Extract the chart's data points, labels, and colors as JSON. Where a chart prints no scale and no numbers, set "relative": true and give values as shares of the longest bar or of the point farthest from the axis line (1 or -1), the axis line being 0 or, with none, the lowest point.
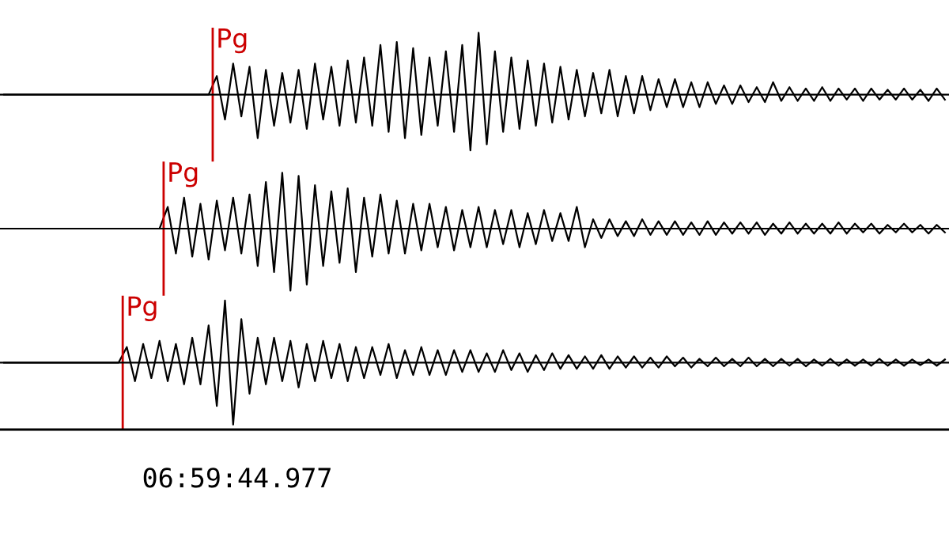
{
  "chart_data": [
    {
      "type": "line",
      "relative": true,
      "tick_labels": false,
      "categories": [
        null,
        null,
        null,
        null,
        null,
        null,
        null,
        null,
        null,
        null,
        null,
        null,
        null,
        null,
        null,
        null,
        null,
        null,
        null,
        null,
        null,
        null,
        null,
        null,
        null,
        null,
        null,
        null,
        null,
        null,
        null,
        null,
        null,
        null,
        null,
        null,
        null,
        null,
        null,
        null,
        null,
        null,
        null,
        null,
        null,
        null,
        null,
        null,
        null,
        null,
        null,
        null,
        null,
        null,
        null,
        null,
        null,
        null,
        null,
        null,
        null,
        null,
        null,
        null,
        null,
        null,
        null,
        null,
        null,
        null,
        null,
        null,
        null,
        null,
        null,
        null,
        null,
        null,
        null,
        null,
        null,
        null,
        null,
        null,
        null,
        null,
        null,
        null,
        null,
        null,
        null,
        null,
        null,
        null,
        null,
        null,
        null,
        null,
        null,
        null,
        null,
        null,
        null,
        null,
        null,
        null,
        null,
        null,
        null,
        null,
        null,
        null,
        null,
        null,
        null,
        null
      ],
      "annotations": [
        "Pg"
      ],
      "series": [
        {
          "color": "#000000",
          "values": [
            0,
            0,
            0,
            0,
            0,
            0,
            0,
            0,
            0,
            0,
            0,
            0,
            0,
            0,
            0,
            0,
            0,
            0,
            0,
            0,
            0,
            0,
            0,
            0,
            0,
            0,
            0.3,
            -0.4,
            0.5,
            -0.35,
            0.45,
            -0.7,
            0.4,
            -0.5,
            0.35,
            -0.45,
            0.4,
            -0.55,
            0.5,
            -0.4,
            0.45,
            -0.5,
            0.55,
            -0.45,
            0.6,
            -0.5,
            0.8,
            -0.6,
            0.85,
            -0.7,
            0.75,
            -0.65,
            0.6,
            -0.5,
            0.7,
            -0.6,
            0.8,
            -0.9,
            1.0,
            -0.8,
            0.7,
            -0.6,
            0.6,
            -0.55,
            0.55,
            -0.5,
            0.5,
            -0.45,
            0.45,
            -0.4,
            0.4,
            -0.35,
            0.35,
            -0.3,
            0.4,
            -0.35,
            0.3,
            -0.3,
            0.3,
            -0.25,
            0.25,
            -0.2,
            0.25,
            -0.2,
            0.2,
            -0.2,
            0.2,
            -0.15,
            0.15,
            -0.15,
            0.15,
            -0.12,
            0.12,
            -0.12,
            0.2,
            -0.1,
            0.12,
            -0.1,
            0.1,
            -0.1,
            0.12,
            -0.1,
            0.1,
            -0.08,
            0.1,
            -0.1,
            0.1,
            -0.08,
            0.08,
            -0.08,
            0.1,
            -0.08,
            0.08,
            -0.1,
            0.1,
            -0.08
          ]
        }
      ]
    },
    {
      "type": "line",
      "relative": true,
      "tick_labels": false,
      "categories": [
        null,
        null,
        null,
        null,
        null,
        null,
        null,
        null,
        null,
        null,
        null,
        null,
        null,
        null,
        null,
        null,
        null,
        null,
        null,
        null,
        null,
        null,
        null,
        null,
        null,
        null,
        null,
        null,
        null,
        null,
        null,
        null,
        null,
        null,
        null,
        null,
        null,
        null,
        null,
        null,
        null,
        null,
        null,
        null,
        null,
        null,
        null,
        null,
        null,
        null,
        null,
        null,
        null,
        null,
        null,
        null,
        null,
        null,
        null,
        null,
        null,
        null,
        null,
        null,
        null,
        null,
        null,
        null,
        null,
        null,
        null,
        null,
        null,
        null,
        null,
        null,
        null,
        null,
        null,
        null,
        null,
        null,
        null,
        null,
        null,
        null,
        null,
        null,
        null,
        null,
        null,
        null,
        null,
        null,
        null,
        null,
        null,
        null,
        null,
        null,
        null,
        null,
        null,
        null,
        null,
        null,
        null,
        null,
        null,
        null,
        null,
        null,
        null,
        null,
        null,
        null
      ],
      "annotations": [
        "Pg"
      ],
      "series": [
        {
          "color": "#000000",
          "values": [
            0,
            0,
            0,
            0,
            0,
            0,
            0,
            0,
            0,
            0,
            0,
            0,
            0,
            0,
            0,
            0,
            0,
            0,
            0,
            0,
            0.35,
            -0.4,
            0.5,
            -0.45,
            0.4,
            -0.5,
            0.45,
            -0.35,
            0.5,
            -0.4,
            0.55,
            -0.6,
            0.75,
            -0.7,
            0.9,
            -1.0,
            0.85,
            -0.9,
            0.7,
            -0.6,
            0.6,
            -0.55,
            0.65,
            -0.7,
            0.5,
            -0.45,
            0.55,
            -0.4,
            0.45,
            -0.4,
            0.4,
            -0.35,
            0.4,
            -0.3,
            0.35,
            -0.35,
            0.3,
            -0.3,
            0.35,
            -0.3,
            0.3,
            -0.25,
            0.3,
            -0.3,
            0.25,
            -0.25,
            0.3,
            -0.2,
            0.25,
            -0.2,
            0.35,
            -0.3,
            0.15,
            -0.15,
            0.15,
            -0.12,
            0.12,
            -0.12,
            0.15,
            -0.1,
            0.12,
            -0.1,
            0.12,
            -0.1,
            0.1,
            -0.1,
            0.12,
            -0.1,
            0.1,
            -0.08,
            0.1,
            -0.08,
            0.1,
            -0.1,
            0.08,
            -0.08,
            0.1,
            -0.08,
            0.08,
            -0.08,
            0.08,
            -0.08,
            0.1,
            -0.08,
            0.08,
            -0.06,
            0.08,
            -0.08,
            0.06,
            -0.06,
            0.08,
            -0.06,
            0.06,
            -0.08,
            0.06,
            -0.06
          ]
        }
      ]
    },
    {
      "type": "line",
      "relative": true,
      "tick_labels": false,
      "categories": [
        null,
        null,
        null,
        null,
        null,
        null,
        null,
        null,
        null,
        null,
        null,
        null,
        null,
        null,
        null,
        null,
        null,
        null,
        null,
        null,
        null,
        null,
        null,
        null,
        null,
        null,
        null,
        null,
        null,
        null,
        null,
        null,
        null,
        null,
        null,
        null,
        null,
        null,
        null,
        null,
        null,
        null,
        null,
        null,
        null,
        null,
        null,
        null,
        null,
        null,
        null,
        null,
        null,
        null,
        null,
        null,
        null,
        null,
        null,
        null,
        null,
        null,
        null,
        null,
        null,
        null,
        null,
        null,
        null,
        null,
        null,
        null,
        null,
        null,
        null,
        null,
        null,
        null,
        null,
        null,
        null,
        null,
        null,
        null,
        null,
        null,
        null,
        null,
        null,
        null,
        null,
        null,
        null,
        null,
        null,
        null,
        null,
        null,
        null,
        null,
        null,
        null,
        null,
        null,
        null,
        null,
        null,
        null,
        null,
        null,
        null,
        null,
        null,
        null,
        null,
        null
      ],
      "annotations": [
        "Pg",
        "06:59:44.977"
      ],
      "series": [
        {
          "color": "#000000",
          "values": [
            0,
            0,
            0,
            0,
            0,
            0,
            0,
            0,
            0,
            0,
            0,
            0,
            0,
            0,
            0,
            0.25,
            -0.3,
            0.3,
            -0.25,
            0.35,
            -0.3,
            0.3,
            -0.35,
            0.4,
            -0.35,
            0.6,
            -0.7,
            1.0,
            -1.0,
            0.7,
            -0.5,
            0.4,
            -0.35,
            0.4,
            -0.3,
            0.35,
            -0.4,
            0.3,
            -0.3,
            0.35,
            -0.25,
            0.3,
            -0.3,
            0.25,
            -0.25,
            0.25,
            -0.2,
            0.3,
            -0.25,
            0.2,
            -0.2,
            0.25,
            -0.2,
            0.2,
            -0.2,
            0.2,
            -0.15,
            0.2,
            -0.15,
            0.15,
            -0.15,
            0.2,
            -0.12,
            0.15,
            -0.15,
            0.12,
            -0.12,
            0.15,
            -0.1,
            0.12,
            -0.1,
            0.1,
            -0.1,
            0.12,
            -0.1,
            0.1,
            -0.08,
            0.1,
            -0.08,
            0.08,
            -0.08,
            0.1,
            -0.06,
            0.08,
            -0.08,
            0.06,
            -0.06,
            0.08,
            -0.06,
            0.06,
            -0.06,
            0.08,
            -0.06,
            0.06,
            -0.06,
            0.06,
            -0.05,
            0.06,
            -0.06,
            0.05,
            -0.05,
            0.06,
            -0.05,
            0.05,
            -0.05,
            0.05,
            -0.05,
            0.06,
            -0.05,
            0.05,
            -0.05,
            0.05,
            -0.04,
            0.05,
            -0.05,
            0.05
          ]
        }
      ]
    }
  ]
}
